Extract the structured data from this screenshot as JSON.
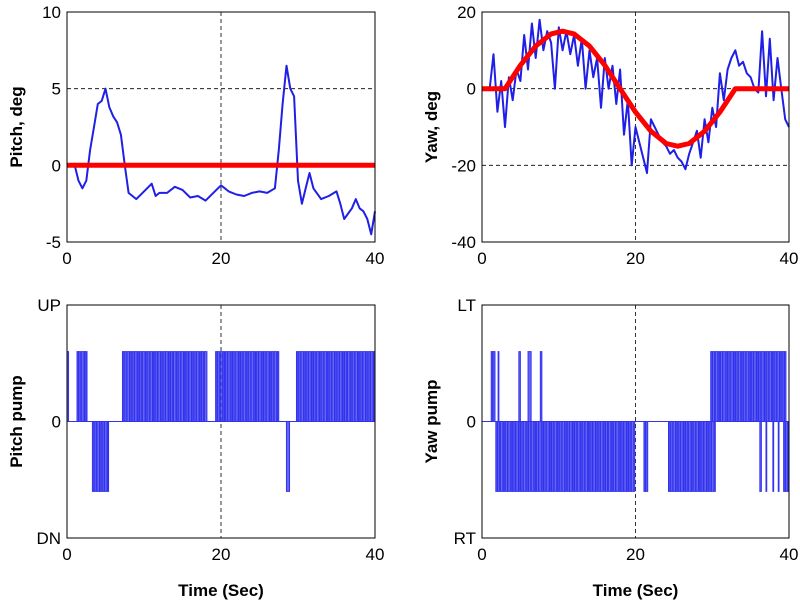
{
  "chart_data": [
    {
      "type": "line",
      "ylabel": "Pitch, deg",
      "xlabel": "",
      "xlim": [
        0,
        40
      ],
      "ylim": [
        -5,
        10
      ],
      "xticks": [
        "0",
        "20",
        "40"
      ],
      "yticks": [
        "-5",
        "0",
        "5",
        "10"
      ],
      "ytick_values": [
        -5,
        0,
        5,
        10
      ],
      "grid": {
        "x": [
          20
        ],
        "y": [
          5
        ]
      },
      "colors": {
        "measured": "#1f1fe6",
        "command": "#ff0000"
      },
      "command": {
        "x": [
          0,
          40
        ],
        "y": [
          0,
          0
        ]
      },
      "measured": {
        "x": [
          1,
          1.5,
          2,
          2.5,
          3,
          3.5,
          4,
          4.5,
          5,
          5.5,
          6,
          6.5,
          7,
          7.5,
          8,
          9,
          10,
          11,
          11.5,
          12,
          13,
          14,
          15,
          16,
          17,
          18,
          19,
          20,
          21,
          22,
          23,
          24,
          25,
          26,
          27,
          27.5,
          28,
          28.5,
          29,
          29.5,
          30,
          30.5,
          31,
          31.5,
          32,
          33,
          34,
          35,
          35.5,
          36,
          37,
          37.5,
          38,
          38.5,
          39,
          39.5,
          40
        ],
        "y": [
          0,
          -1,
          -1.5,
          -1,
          1,
          2.5,
          4,
          4.2,
          5,
          3.8,
          3.2,
          2.8,
          2,
          0,
          -1.8,
          -2.2,
          -1.7,
          -1.2,
          -2,
          -1.8,
          -1.8,
          -1.4,
          -1.6,
          -2.1,
          -2,
          -2.3,
          -1.8,
          -1.3,
          -1.7,
          -1.9,
          -2,
          -1.8,
          -1.7,
          -1.8,
          -1.5,
          1,
          4,
          6.5,
          5,
          4.5,
          -1,
          -2.5,
          -1.5,
          -0.5,
          -1.5,
          -2.2,
          -2,
          -1.7,
          -2.5,
          -3.5,
          -2.8,
          -2.2,
          -2.8,
          -3,
          -3.5,
          -4.5,
          -3
        ]
      }
    },
    {
      "type": "line",
      "ylabel": "Yaw, deg",
      "xlabel": "",
      "xlim": [
        0,
        40
      ],
      "ylim": [
        -40,
        20
      ],
      "xticks": [
        "0",
        "20",
        "40"
      ],
      "yticks": [
        "-40",
        "-20",
        "0",
        "20"
      ],
      "ytick_values": [
        -40,
        -20,
        0,
        20
      ],
      "grid": {
        "x": [
          20
        ],
        "y": [
          0,
          -20
        ]
      },
      "colors": {
        "measured": "#1f1fe6",
        "command": "#ff0000"
      },
      "command": {
        "x": [
          0,
          3,
          5,
          7,
          9,
          10.5,
          12,
          14,
          16,
          18,
          20,
          22,
          24,
          25.5,
          27,
          29,
          31,
          33,
          40
        ],
        "y": [
          0,
          0,
          6.1,
          11.1,
          14.3,
          15,
          14.3,
          11.1,
          6.1,
          0,
          -6.1,
          -11.1,
          -14.3,
          -15,
          -14.3,
          -11.1,
          -6.1,
          0,
          0
        ]
      },
      "measured": {
        "x": [
          1,
          1.5,
          2,
          2.5,
          3,
          3.5,
          4,
          4.5,
          5,
          5.5,
          6,
          6.5,
          7,
          7.5,
          8,
          8.5,
          9,
          9.5,
          10,
          10.5,
          11,
          11.5,
          12,
          12.5,
          13,
          13.5,
          14,
          14.5,
          15,
          15.5,
          16,
          16.5,
          17,
          17.5,
          18,
          18.5,
          19,
          19.5,
          20,
          20.5,
          21,
          21.5,
          22,
          22.5,
          23,
          23.5,
          24,
          24.5,
          25,
          25.5,
          26,
          26.5,
          27,
          27.5,
          28,
          28.5,
          29,
          29.5,
          30,
          30.5,
          31,
          31.5,
          32,
          32.5,
          33,
          33.5,
          34,
          34.5,
          35,
          35.5,
          36,
          36.5,
          37,
          37.5,
          38,
          38.5,
          39,
          39.5,
          40
        ],
        "y": [
          0,
          9,
          -6,
          2,
          -10,
          3,
          -3,
          5,
          2,
          14,
          5,
          17,
          8,
          18,
          10,
          15,
          12,
          0,
          16,
          10,
          15,
          9,
          14,
          6,
          13,
          0,
          10,
          3,
          8,
          -5,
          8,
          0,
          6,
          -4,
          5,
          -12,
          -3,
          -20,
          -10,
          -14,
          -18,
          -22,
          -8,
          -10,
          -12,
          -14,
          -15,
          -17,
          -16,
          -18,
          -19,
          -21,
          -17,
          -14,
          -11,
          -18,
          -8,
          -14,
          -5,
          -10,
          4,
          -3,
          5,
          8,
          10,
          6,
          7,
          4,
          3,
          0,
          -1,
          15,
          -2,
          13,
          -3,
          8,
          0,
          -8,
          -10
        ]
      }
    },
    {
      "type": "line",
      "ylabel": "Pitch pump",
      "xlabel": "Time (Sec)",
      "xlim": [
        0,
        40
      ],
      "ylim": [
        -1,
        1
      ],
      "xticks": [
        "0",
        "20",
        "40"
      ],
      "yticks": [
        "DN",
        "0",
        "UP"
      ],
      "ytick_values": [
        -1,
        0,
        1
      ],
      "grid": {
        "x": [
          20
        ],
        "y": [
          0
        ]
      },
      "colors": {
        "pulses": "#3333ee"
      },
      "pulse_bursts": [
        {
          "start": 0,
          "end": 0.2,
          "level": 0.6
        },
        {
          "start": 1.3,
          "end": 2.6,
          "level": 0.6
        },
        {
          "start": 3.3,
          "end": 5.4,
          "level": -0.6
        },
        {
          "start": 7.2,
          "end": 18.2,
          "level": 0.6
        },
        {
          "start": 19.3,
          "end": 27.5,
          "level": 0.6
        },
        {
          "start": 28.5,
          "end": 28.9,
          "level": -0.6
        },
        {
          "start": 29.8,
          "end": 40,
          "level": 0.6
        }
      ]
    },
    {
      "type": "line",
      "ylabel": "Yaw pump",
      "xlabel": "Time (Sec)",
      "xlim": [
        0,
        40
      ],
      "ylim": [
        -1,
        1
      ],
      "xticks": [
        "0",
        "20",
        "40"
      ],
      "yticks": [
        "RT",
        "0",
        "LT"
      ],
      "ytick_values": [
        -1,
        0,
        1
      ],
      "grid": {
        "x": [
          20
        ],
        "y": [
          0
        ]
      },
      "colors": {
        "pulses": "#3333ee"
      },
      "pulse_bursts": [
        {
          "start": 1.2,
          "end": 1.7,
          "level": 0.6
        },
        {
          "start": 2.1,
          "end": 2.2,
          "level": 0.6
        },
        {
          "start": 4.8,
          "end": 5.0,
          "level": 0.6
        },
        {
          "start": 6.0,
          "end": 6.4,
          "level": 0.6
        },
        {
          "start": 7.6,
          "end": 7.8,
          "level": 0.6
        },
        {
          "start": 1.8,
          "end": 19.9,
          "level": -0.6
        },
        {
          "start": 21.1,
          "end": 21.7,
          "level": -0.6
        },
        {
          "start": 24.3,
          "end": 30.4,
          "level": -0.6
        },
        {
          "start": 29.8,
          "end": 39.6,
          "level": 0.6
        },
        {
          "start": 36.2,
          "end": 36.4,
          "level": -0.6
        },
        {
          "start": 37.0,
          "end": 37.1,
          "level": -0.6
        },
        {
          "start": 37.9,
          "end": 38.0,
          "level": -0.6
        },
        {
          "start": 38.6,
          "end": 38.7,
          "level": -0.6
        },
        {
          "start": 39.3,
          "end": 40,
          "level": -0.6
        }
      ]
    }
  ]
}
